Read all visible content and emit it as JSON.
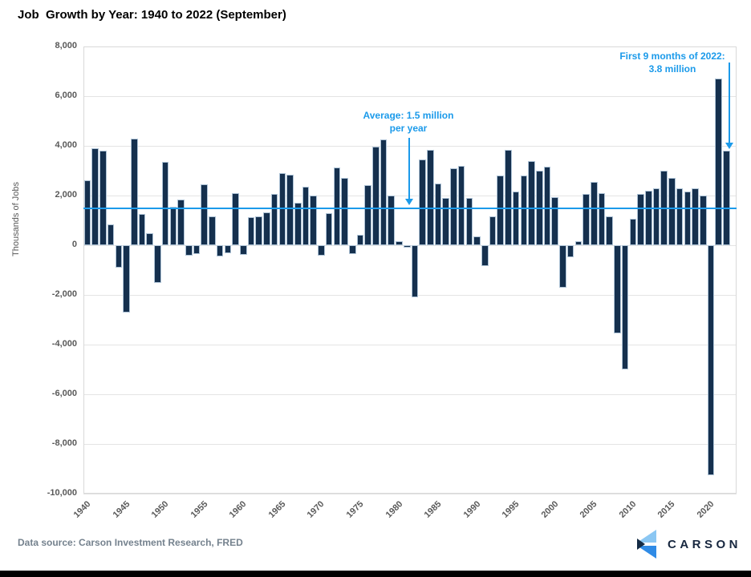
{
  "title": "Job  Growth by Year: 1940 to 2022 (September)",
  "y_axis": {
    "label": "Thousands of Jobs",
    "ticks": [
      {
        "label": "8,000",
        "value": 8000
      },
      {
        "label": "6,000",
        "value": 6000
      },
      {
        "label": "4,000",
        "value": 4000
      },
      {
        "label": "2,000",
        "value": 2000
      },
      {
        "label": "0",
        "value": 0
      },
      {
        "label": "-2,000",
        "value": -2000
      },
      {
        "label": "-4,000",
        "value": -4000
      },
      {
        "label": "-6,000",
        "value": -6000
      },
      {
        "label": "-8,000",
        "value": -8000
      },
      {
        "label": "-10,000",
        "value": -10000
      }
    ]
  },
  "x_axis": {
    "ticks": [
      1940,
      1945,
      1950,
      1955,
      1960,
      1965,
      1970,
      1975,
      1980,
      1985,
      1990,
      1995,
      2000,
      2005,
      2010,
      2015,
      2020
    ]
  },
  "annotations": {
    "average": {
      "line1": "Average: 1.5 million",
      "line2": "per year"
    },
    "ytd2022": {
      "line1": "First 9 months of 2022:",
      "line2": "3.8 million"
    }
  },
  "footer": {
    "source": "Data source: Carson Investment Research, FRED"
  },
  "logo": {
    "text": "CARSON"
  },
  "colors": {
    "bar": "#15304e",
    "bar_border": "#aec3d6",
    "accent_blue": "#1b9aea",
    "axis_text": "#595959",
    "grid": "#e4e4e4",
    "footer_text": "#75828e",
    "logo_navy": "#17273f"
  },
  "chart_data": {
    "type": "bar",
    "title": "Job Growth by Year: 1940 to 2022 (September)",
    "xlabel": "",
    "ylabel": "Thousands of Jobs",
    "ylim": [
      -10000,
      8000
    ],
    "grid": true,
    "legend": "none",
    "average_line": 1500,
    "start_year": 1940,
    "end_year": 2022,
    "values": [
      2600,
      3900,
      3800,
      850,
      -900,
      -2700,
      4300,
      1250,
      480,
      -1500,
      3350,
      1550,
      1850,
      -430,
      -370,
      2450,
      1150,
      -460,
      -310,
      2100,
      -400,
      1130,
      1160,
      1320,
      2080,
      2900,
      2850,
      1700,
      2350,
      2000,
      -430,
      1300,
      3120,
      2720,
      -350,
      410,
      2430,
      3960,
      4250,
      2000,
      150,
      -100,
      -2100,
      3450,
      3850,
      2500,
      1900,
      3100,
      3200,
      1900,
      350,
      -840,
      1160,
      2800,
      3850,
      2150,
      2800,
      3400,
      3000,
      3160,
      1940,
      -1700,
      -470,
      150,
      2080,
      2550,
      2100,
      1150,
      -3550,
      -5000,
      1050,
      2050,
      2200,
      2300,
      3000,
      2700,
      2300,
      2150,
      2300,
      2000,
      -9250,
      6700,
      3800
    ]
  }
}
